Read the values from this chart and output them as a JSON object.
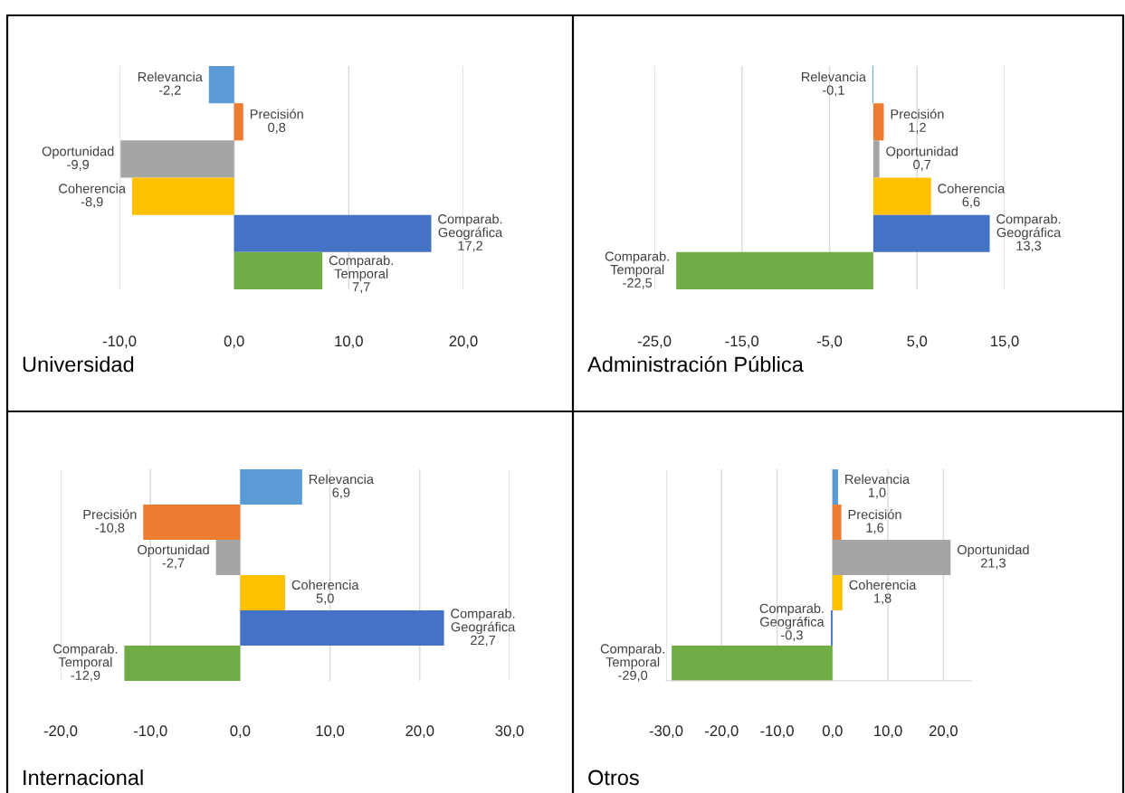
{
  "chart_data": [
    {
      "type": "bar",
      "orientation": "horizontal",
      "title": "Internacional",
      "categories": [
        null,
        null,
        null,
        null,
        null,
        null
      ],
      "values": [
        6.9,
        -10.8,
        -2.7,
        5.0,
        22.7,
        -12.9
      ],
      "colors": [
        "#5b9bd5",
        "#ed7d31",
        "#a5a5a5",
        "#ffc000",
        "#4472c4",
        "#70ad47"
      ],
      "value_labels": [
        "Relevancia 6,9",
        "Precisión -10,8",
        "Oportunidad -2,7",
        "Coherencia 5,0",
        "Comparab. Geográfica 22,7",
        "Comparab. Temporal -12,9"
      ],
      "xlim": [
        -20,
        30
      ],
      "xticks": [
        {
          "value": -20,
          "label": "-20,0"
        },
        {
          "value": -10,
          "label": "-10,0"
        },
        {
          "value": 0,
          "label": "0,0"
        },
        {
          "value": 10,
          "label": "10,0"
        },
        {
          "value": 20,
          "label": "20,0"
        },
        {
          "value": 30,
          "label": "30,0"
        }
      ],
      "grid": "x",
      "tick_labels": "x"
    },
    {
      "type": "bar",
      "orientation": "horizontal",
      "title": "Otros",
      "categories": [
        null,
        null,
        null,
        null,
        null,
        null
      ],
      "values": [
        1.0,
        1.6,
        21.3,
        1.8,
        -0.3,
        -29.0
      ],
      "colors": [
        "#5b9bd5",
        "#ed7d31",
        "#a5a5a5",
        "#ffc000",
        "#4472c4",
        "#70ad47"
      ],
      "value_labels": [
        "Relevancia 1,0",
        "Precisión 1,6",
        "Oportunidad 21,3",
        "Coherencia 1,8",
        "Comparab. Geográfica -0,3",
        "Comparab. Temporal -29,0"
      ],
      "xlim": [
        -30,
        25
      ],
      "xticks": [
        {
          "value": -30,
          "label": "-30,0"
        },
        {
          "value": -20,
          "label": "-20,0"
        },
        {
          "value": -10,
          "label": "-10,0"
        },
        {
          "value": 0,
          "label": "0,0"
        },
        {
          "value": 10,
          "label": "10,0"
        },
        {
          "value": 20,
          "label": "20,0"
        }
      ],
      "grid": "x",
      "tick_labels": "x"
    },
    {
      "type": "bar",
      "orientation": "horizontal",
      "title": "Universidad",
      "categories": [
        null,
        null,
        null,
        null,
        null,
        null
      ],
      "values": [
        -2.2,
        0.8,
        -9.9,
        -8.9,
        17.2,
        7.7
      ],
      "colors": [
        "#5b9bd5",
        "#ed7d31",
        "#a5a5a5",
        "#ffc000",
        "#4472c4",
        "#70ad47"
      ],
      "value_labels": [
        "Relevancia -2,2",
        "Precisión 0,8",
        "Oportunidad -9,9",
        "Coherencia -8,9",
        "Comparab. Geográfica 17,2",
        "Comparab. Temporal 7,7"
      ],
      "xlim": [
        -10,
        20
      ],
      "xticks": [
        {
          "value": -10,
          "label": "-10,0"
        },
        {
          "value": 0,
          "label": "0,0"
        },
        {
          "value": 10,
          "label": "10,0"
        },
        {
          "value": 20,
          "label": "20,0"
        }
      ],
      "grid": "x",
      "tick_labels": "x"
    },
    {
      "type": "bar",
      "orientation": "horizontal",
      "title": "Administración Pública",
      "categories": [
        null,
        null,
        null,
        null,
        null,
        null
      ],
      "values": [
        -0.1,
        1.2,
        0.7,
        6.6,
        13.3,
        -22.5
      ],
      "colors": [
        "#5b9bd5",
        "#ed7d31",
        "#a5a5a5",
        "#ffc000",
        "#4472c4",
        "#70ad47"
      ],
      "value_labels": [
        "Relevancia -0,1",
        "Precisión 1,2",
        "Oportunidad 0,7",
        "Coherencia 6,6",
        "Comparab. Geográfica 13,3",
        "Comparab. Temporal -22,5"
      ],
      "xlim": [
        -25,
        15
      ],
      "xticks": [
        {
          "value": -25,
          "label": "-25,0"
        },
        {
          "value": -15,
          "label": "-15,0"
        },
        {
          "value": -5,
          "label": "-5,0"
        },
        {
          "value": 5,
          "label": "5,0"
        },
        {
          "value": 15,
          "label": "15,0"
        }
      ],
      "grid": "x",
      "tick_labels": "x"
    }
  ]
}
